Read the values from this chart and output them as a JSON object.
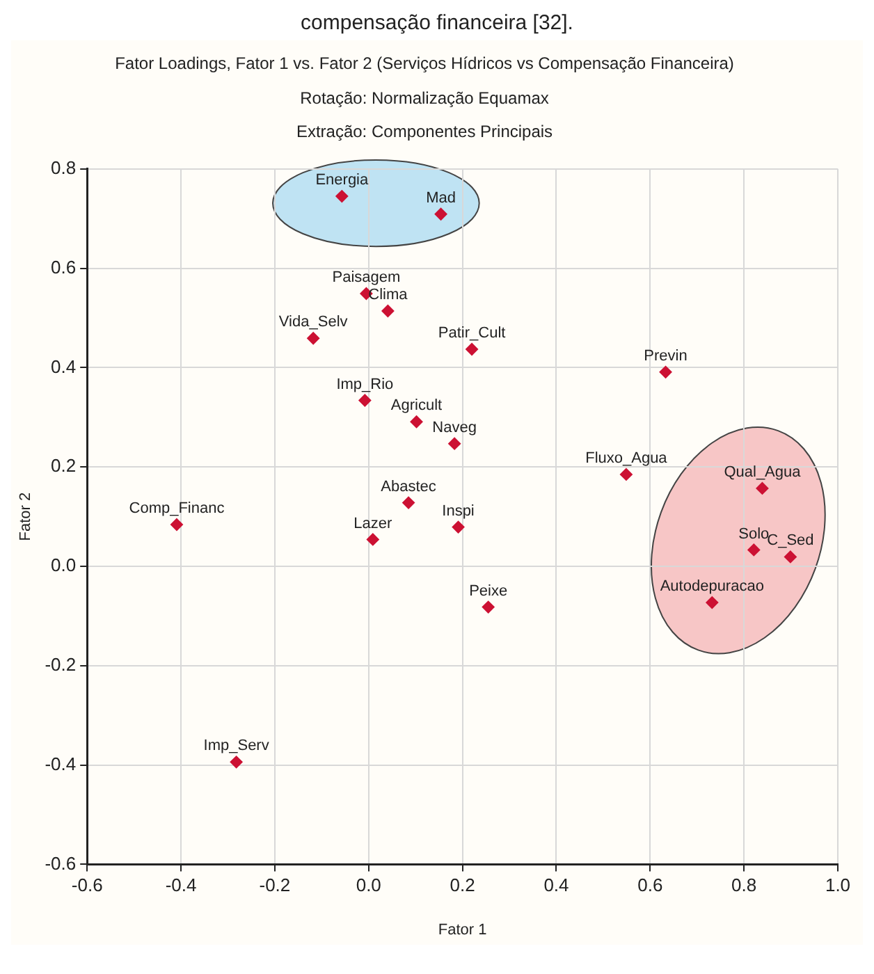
{
  "chart_data": {
    "type": "scatter",
    "title": "Fator Loadings, Fator 1 vs. Fator 2 (Serviços Hídricos vs Compensação Financeira)",
    "subtitle": "Rotação: Normalização Equamax\nExtração: Componentes Principais",
    "xlabel": "Fator 1",
    "ylabel": "Fator 2",
    "series": [
      {
        "color": "#cc1133",
        "x": [
          -0.057,
          0.154,
          -0.005,
          0.041,
          -0.118,
          0.22,
          -0.008,
          0.102,
          0.183,
          0.085,
          0.009,
          0.191,
          -0.409,
          0.255,
          0.633,
          0.549,
          0.839,
          0.821,
          0.899,
          0.732,
          -0.282
        ],
        "values": [
          0.745,
          0.709,
          0.549,
          0.514,
          0.459,
          0.437,
          0.334,
          0.291,
          0.247,
          0.128,
          0.054,
          0.079,
          0.084,
          -0.082,
          0.391,
          0.185,
          0.157,
          0.033,
          0.019,
          -0.073,
          -0.394
        ]
      }
    ],
    "annotations": [
      "compensação financeira [32].",
      {
        "text": "Energia",
        "x": -0.057,
        "y": 0.745
      },
      {
        "text": "Mad",
        "x": 0.154,
        "y": 0.709
      },
      {
        "text": "Paisagem",
        "x": -0.005,
        "y": 0.549
      },
      {
        "text": "Clima",
        "x": 0.041,
        "y": 0.514
      },
      {
        "text": "Vida_Selv",
        "x": -0.118,
        "y": 0.459
      },
      {
        "text": "Patir_Cult",
        "x": 0.22,
        "y": 0.437
      },
      {
        "text": "Imp_Rio",
        "x": -0.008,
        "y": 0.334
      },
      {
        "text": "Agricult",
        "x": 0.102,
        "y": 0.291
      },
      {
        "text": "Naveg",
        "x": 0.183,
        "y": 0.247
      },
      {
        "text": "Abastec",
        "x": 0.085,
        "y": 0.128
      },
      {
        "text": "Lazer",
        "x": 0.009,
        "y": 0.054
      },
      {
        "text": "Inspi",
        "x": 0.191,
        "y": 0.079
      },
      {
        "text": "Comp_Financ",
        "x": -0.409,
        "y": 0.084
      },
      {
        "text": "Peixe",
        "x": 0.255,
        "y": -0.082
      },
      {
        "text": "Previn",
        "x": 0.633,
        "y": 0.391
      },
      {
        "text": "Fluxo_Agua",
        "x": 0.549,
        "y": 0.185
      },
      {
        "text": "Qual_Agua",
        "x": 0.839,
        "y": 0.157
      },
      {
        "text": "Solo",
        "x": 0.821,
        "y": 0.033
      },
      {
        "text": "C_Sed",
        "x": 0.899,
        "y": 0.019
      },
      {
        "text": "Autodepuracao",
        "x": 0.732,
        "y": -0.073
      },
      {
        "text": "Imp_Serv",
        "x": -0.282,
        "y": -0.394
      }
    ],
    "xlim": [
      -0.6,
      1.0
    ],
    "xticks": [
      -0.6,
      -0.4,
      -0.2,
      {
        "value": 0,
        "label": "0.0"
      },
      0.2,
      0.4,
      0.6,
      0.8,
      {
        "value": 1,
        "label": "1.0"
      }
    ],
    "ylim": [
      -0.6,
      0.8
    ],
    "yticks": [
      -0.6,
      -0.4,
      -0.2,
      {
        "value": 0,
        "label": "0.0"
      },
      0.2,
      0.4,
      0.6,
      0.8
    ],
    "grid": true,
    "legend": false,
    "marker": "diamond"
  }
}
